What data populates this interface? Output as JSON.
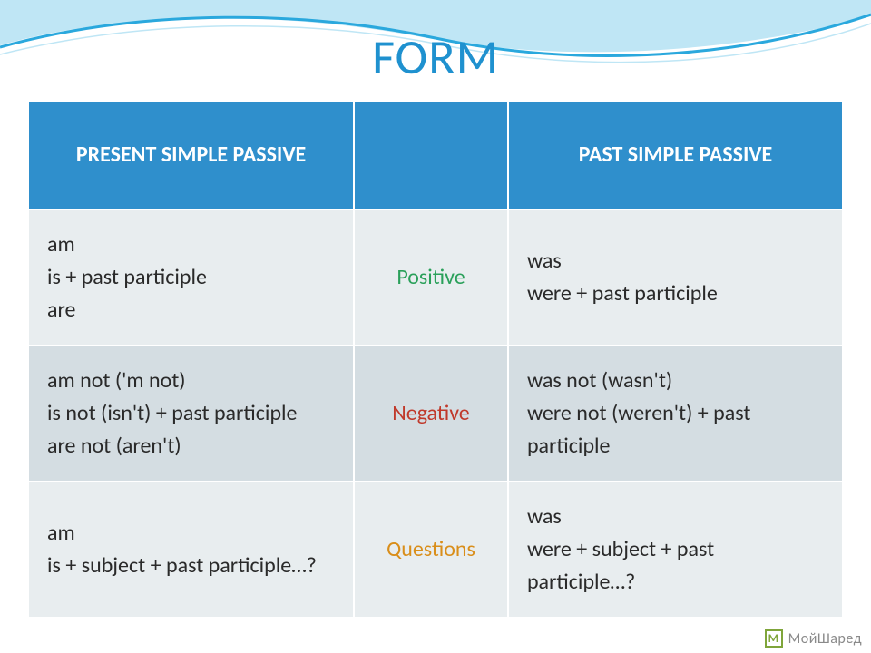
{
  "title": "FORM",
  "title_color": "#1f91cf",
  "table": {
    "header_bg": "#2f8fcc",
    "header_fg": "#ffffff",
    "row_a_bg": "#e8edef",
    "row_b_bg": "#d4dde2",
    "mid_colors": {
      "positive": "#2aa05a",
      "negative": "#c0392b",
      "questions": "#d98e1a"
    },
    "cell_fg": "#2a2a2a",
    "border_color": "#ffffff",
    "headers": {
      "left": "PRESENT SIMPLE PASSIVE",
      "mid": "",
      "right": "PAST SIMPLE PASSIVE"
    },
    "rows": [
      {
        "mid": "Positive",
        "left_lines": [
          "am",
          "is + past participle",
          "are"
        ],
        "right_lines": [
          "was",
          "were + past participle"
        ],
        "bg": "row_a"
      },
      {
        "mid": "Negative",
        "left_lines": [
          "am not ('m not)",
          "is not (isn't) + past participle",
          "are not (aren't)"
        ],
        "right_lines": [
          "was not (wasn't)",
          "were not (weren't) + past participle"
        ],
        "bg": "row_b"
      },
      {
        "mid": "Questions",
        "left_lines": [
          "am",
          "is + subject + past participle…?"
        ],
        "right_lines": [
          "was",
          "were + subject + past participle…?"
        ],
        "bg": "row_a"
      }
    ]
  },
  "wave": {
    "stroke1": "#bfe6f5",
    "stroke2": "#2aa8dd",
    "fill": "#ffffff"
  },
  "watermark": {
    "text": "МойШаред",
    "icon_color": "#7fa53a",
    "text_color": "#8a8a8a",
    "icon_letter": "M"
  }
}
